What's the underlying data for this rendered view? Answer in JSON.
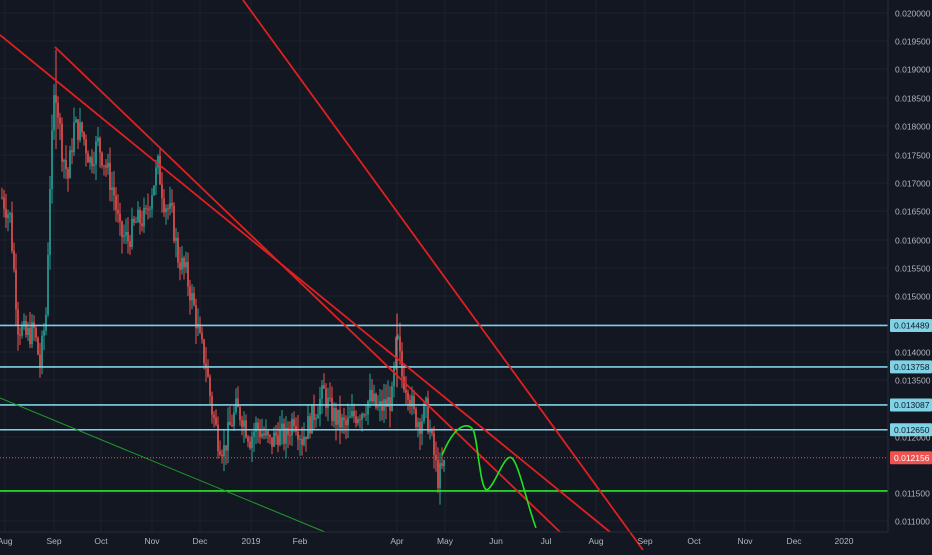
{
  "chart_data": {
    "type": "candlestick",
    "x_axis": {
      "ticks": [
        "Aug",
        "Sep",
        "Oct",
        "Nov",
        "Dec",
        "2019",
        "Feb",
        "Apr",
        "May",
        "Jun",
        "Jul",
        "Aug",
        "Sep",
        "Oct",
        "Nov",
        "Dec",
        "2020"
      ]
    },
    "y_axis": {
      "ticks": [
        "0.020000",
        "0.019500",
        "0.019000",
        "0.018500",
        "0.018000",
        "0.017500",
        "0.017000",
        "0.016500",
        "0.016000",
        "0.015500",
        "0.015000",
        "0.014000",
        "0.013500",
        "0.012000",
        "0.011500",
        "0.011000"
      ],
      "range": [
        0.0108,
        0.0201
      ]
    },
    "horizontal_levels": [
      {
        "label": "0.014489",
        "value": 0.014489,
        "color": "#7fd3e6"
      },
      {
        "label": "0.013758",
        "value": 0.013758,
        "color": "#7fd3e6"
      },
      {
        "label": "0.013087",
        "value": 0.013087,
        "color": "#7fd3e6"
      },
      {
        "label": "0.012650",
        "value": 0.01265,
        "color": "#7fd3e6"
      },
      {
        "label": "",
        "value": 0.01157,
        "color": "#2ee62e"
      }
    ],
    "last_price": {
      "label": "0.012156",
      "value": 0.012156,
      "color": "#ef5350"
    },
    "trend_lines": [
      {
        "from": [
          "Aug",
          0.0197
        ],
        "to": [
          "Aug",
          0.01085
        ],
        "color": "#e02020"
      },
      {
        "from": [
          "Sep",
          0.0192
        ],
        "to": [
          "Oct",
          0.0108
        ],
        "color": "#e02020"
      },
      {
        "from": [
          "Sep",
          0.019
        ],
        "to": [
          "Aug",
          0.0108
        ],
        "color": "#e02020"
      },
      {
        "from": [
          "Aug",
          0.0131
        ],
        "to": [
          "2019",
          0.0108
        ],
        "color": "#1f9c2a"
      }
    ],
    "projection": {
      "color": "#22e022",
      "path_values": [
        0.0122,
        0.01265,
        0.0116,
        0.01215,
        0.01092
      ]
    },
    "colors": {
      "background": "#131722",
      "up": "#26a69a",
      "down": "#ef5350",
      "axis_text": "#b2b5be"
    }
  }
}
